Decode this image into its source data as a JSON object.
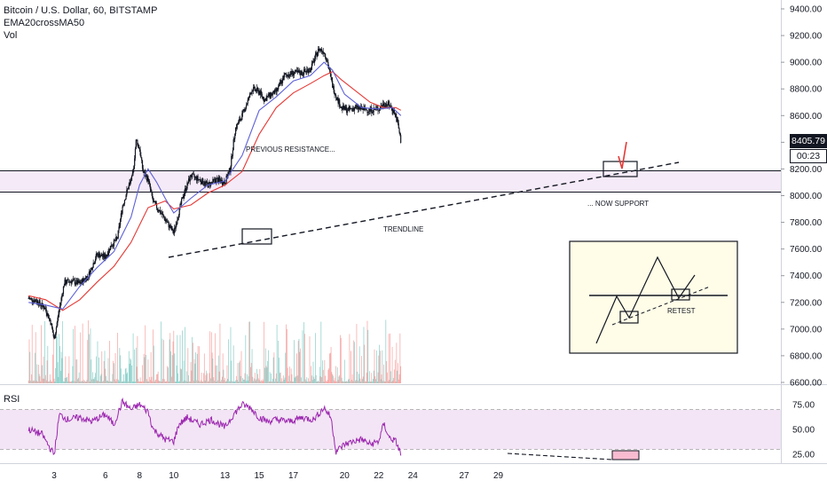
{
  "header": {
    "symbol_line": "Bitcoin / U.S. Dollar, 60, BITSTAMP",
    "indicator_1": "EMA20crossMA50",
    "indicator_2": "Vol"
  },
  "rsi_panel": {
    "label": "RSI"
  },
  "price_readout": {
    "last_price": "8405.79",
    "countdown": "00:23"
  },
  "annotations": {
    "previous_resistance": "PREVIOUS RESISTANCE...",
    "now_support": "... NOW SUPPORT",
    "trendline": "TRENDLINE",
    "inset_retest": "RETEST"
  },
  "colors": {
    "up_candle": "#26a69a",
    "down_candle": "#ef5350",
    "ema20": "#5b5fd6",
    "ma50": "#e53935",
    "rsi_line": "#9c27b0",
    "rsi_band": "#f3e5f5",
    "zone": "#f3e5f5",
    "inset_bg": "#fffde7",
    "last_price_bg": "#131722"
  },
  "chart_data": [
    {
      "type": "line",
      "title": "Bitcoin / U.S. Dollar, 60, BITSTAMP",
      "x_ticks": [
        "3",
        "6",
        "8",
        "10",
        "13",
        "15",
        "17",
        "20",
        "22",
        "24",
        "27",
        "29"
      ],
      "ylim": [
        6600,
        9450
      ],
      "y_ticks": [
        "9400.00",
        "9200.00",
        "9000.00",
        "8800.00",
        "8600.00",
        "8400.00",
        "8200.00",
        "8000.00",
        "7800.00",
        "7600.00",
        "7400.00",
        "7200.00",
        "7000.00",
        "6800.00",
        "6600.00"
      ],
      "series": [
        {
          "name": "Bitcoin / U.S. Dollar",
          "x": [
            1.5,
            2.0,
            2.5,
            2.8,
            3.0,
            3.3,
            3.6,
            4.0,
            4.5,
            5.0,
            5.5,
            6.0,
            6.3,
            6.7,
            7.0,
            7.3,
            7.6,
            7.8,
            8.0,
            8.2,
            8.5,
            8.8,
            9.2,
            9.6,
            10.0,
            10.3,
            10.6,
            11.0,
            11.5,
            12.0,
            12.5,
            13.0,
            13.3,
            13.6,
            14.0,
            14.3,
            14.6,
            15.0,
            15.3,
            15.6,
            16.0,
            16.5,
            17.0,
            17.5,
            18.0,
            18.5,
            18.8,
            19.0,
            19.3,
            19.5,
            19.8,
            20.2,
            20.6,
            21.0,
            21.5,
            22.0,
            22.3,
            22.6,
            22.9,
            23.1,
            23.3
          ],
          "values": [
            7230,
            7210,
            7150,
            7050,
            6920,
            7150,
            7350,
            7360,
            7340,
            7400,
            7560,
            7540,
            7620,
            7680,
            7920,
            8050,
            8150,
            8420,
            8350,
            8180,
            8120,
            7950,
            7880,
            7800,
            7720,
            7880,
            8020,
            8150,
            8120,
            8080,
            8120,
            8100,
            8200,
            8500,
            8600,
            8700,
            8800,
            8780,
            8720,
            8750,
            8780,
            8900,
            8920,
            8920,
            8950,
            9100,
            9080,
            9000,
            8820,
            8750,
            8660,
            8640,
            8660,
            8650,
            8640,
            8650,
            8690,
            8680,
            8630,
            8550,
            8405.79
          ]
        },
        {
          "name": "EMA20",
          "x": [
            1.5,
            2.5,
            3.5,
            4.5,
            5.5,
            6.5,
            7.5,
            8.0,
            8.5,
            9.0,
            9.5,
            10.0,
            11.0,
            12.0,
            13.0,
            14.0,
            15.0,
            16.0,
            17.0,
            18.0,
            18.8,
            19.3,
            20.0,
            21.0,
            22.0,
            22.8,
            23.3
          ],
          "values": [
            7200,
            7180,
            7150,
            7320,
            7460,
            7580,
            7840,
            8080,
            8200,
            8100,
            7980,
            7870,
            7980,
            8080,
            8110,
            8300,
            8640,
            8740,
            8860,
            8900,
            9000,
            8940,
            8760,
            8660,
            8650,
            8660,
            8600
          ]
        },
        {
          "name": "MA50",
          "x": [
            1.5,
            2.5,
            3.5,
            4.5,
            5.5,
            6.5,
            7.5,
            8.5,
            9.5,
            10.0,
            11.0,
            12.0,
            13.0,
            14.0,
            15.0,
            16.0,
            17.0,
            18.0,
            18.8,
            19.3,
            19.8,
            20.5,
            21.5,
            22.3,
            23.0,
            23.3
          ],
          "values": [
            7250,
            7220,
            7140,
            7220,
            7350,
            7470,
            7650,
            7910,
            7960,
            7900,
            7930,
            8020,
            8080,
            8180,
            8460,
            8660,
            8770,
            8840,
            8900,
            8930,
            8870,
            8800,
            8700,
            8660,
            8660,
            8640
          ]
        }
      ]
    },
    {
      "type": "line",
      "title": "RSI",
      "ylim": [
        20,
        80
      ],
      "y_ticks": [
        "75.00",
        "50.00",
        "25.00"
      ],
      "band": [
        30,
        70
      ],
      "series": [
        {
          "name": "RSI",
          "x": [
            1.5,
            2.3,
            2.8,
            3.0,
            3.3,
            3.8,
            4.5,
            5.2,
            6.0,
            6.5,
            7.0,
            7.5,
            8.0,
            8.5,
            8.8,
            9.5,
            10.0,
            10.3,
            10.8,
            11.5,
            12.2,
            13.0,
            13.5,
            14.0,
            14.5,
            15.0,
            15.5,
            16.0,
            16.8,
            17.5,
            18.2,
            18.8,
            19.2,
            19.5,
            20.0,
            20.5,
            21.0,
            21.5,
            22.0,
            22.3,
            22.6,
            23.0,
            23.3
          ],
          "values": [
            50,
            45,
            30,
            25,
            65,
            60,
            62,
            58,
            65,
            55,
            78,
            70,
            75,
            68,
            50,
            40,
            38,
            55,
            62,
            55,
            60,
            52,
            65,
            75,
            72,
            62,
            58,
            60,
            58,
            62,
            60,
            72,
            62,
            28,
            35,
            38,
            40,
            35,
            38,
            56,
            42,
            38,
            25
          ]
        }
      ]
    }
  ]
}
